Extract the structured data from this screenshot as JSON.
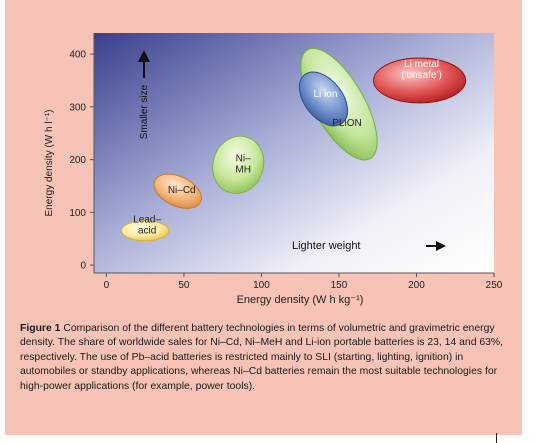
{
  "chart_data": {
    "type": "scatter",
    "xlabel": "Energy density (W h kg⁻¹)",
    "ylabel": "Energy density (W h l⁻¹)",
    "xlim": [
      -8,
      250
    ],
    "ylim": [
      -15,
      440
    ],
    "xticks": [
      "0",
      "50",
      "100",
      "150",
      "200",
      "250"
    ],
    "yticks": [
      "0",
      "100",
      "200",
      "300",
      "400"
    ],
    "grid": false,
    "regions": [
      {
        "label": "Lead–\nacid",
        "color": "#fbe9a0",
        "center": [
          25,
          65
        ],
        "rx": 17,
        "ry": 38,
        "angle": 0
      },
      {
        "label": "Ni–Cd",
        "color": "#f4b57a",
        "center": [
          46,
          140
        ],
        "rx": 18,
        "ry": 56,
        "angle": 25
      },
      {
        "label": "Ni–\nMH",
        "color": "#c9e79b",
        "center": [
          85,
          190
        ],
        "rx": 18,
        "ry": 110,
        "angle": 18
      },
      {
        "label": "PLiON",
        "color": "#c4e59a",
        "center": [
          150,
          305
        ],
        "rx": 45,
        "ry": 95,
        "angle": 60
      },
      {
        "label": "Li ion",
        "color": "#6f8fcc",
        "center": [
          140,
          315
        ],
        "rx": 22,
        "ry": 72,
        "angle": 52
      },
      {
        "label": "Li metal\n('unsafe')",
        "color": "#e25454",
        "center": [
          202,
          350
        ],
        "rx": 33,
        "ry": 85,
        "angle": 0
      }
    ],
    "annotations": [
      "Smaller size",
      "Lighter weight"
    ]
  },
  "caption": {
    "label": "Figure 1",
    "text": "Comparison of the different battery technologies in terms of volumetric and gravimetric energy density. The share of worldwide sales for Ni–Cd, Ni–MeH and Li-ion portable batteries is 23, 14  and  63%, respectively. The use of Pb–acid batteries is restricted mainly to SLI (starting, lighting, ignition) in automobiles or standby applications, whereas Ni–Cd batteries remain the most suitable technologies for high-power applications (for example, power tools)."
  }
}
